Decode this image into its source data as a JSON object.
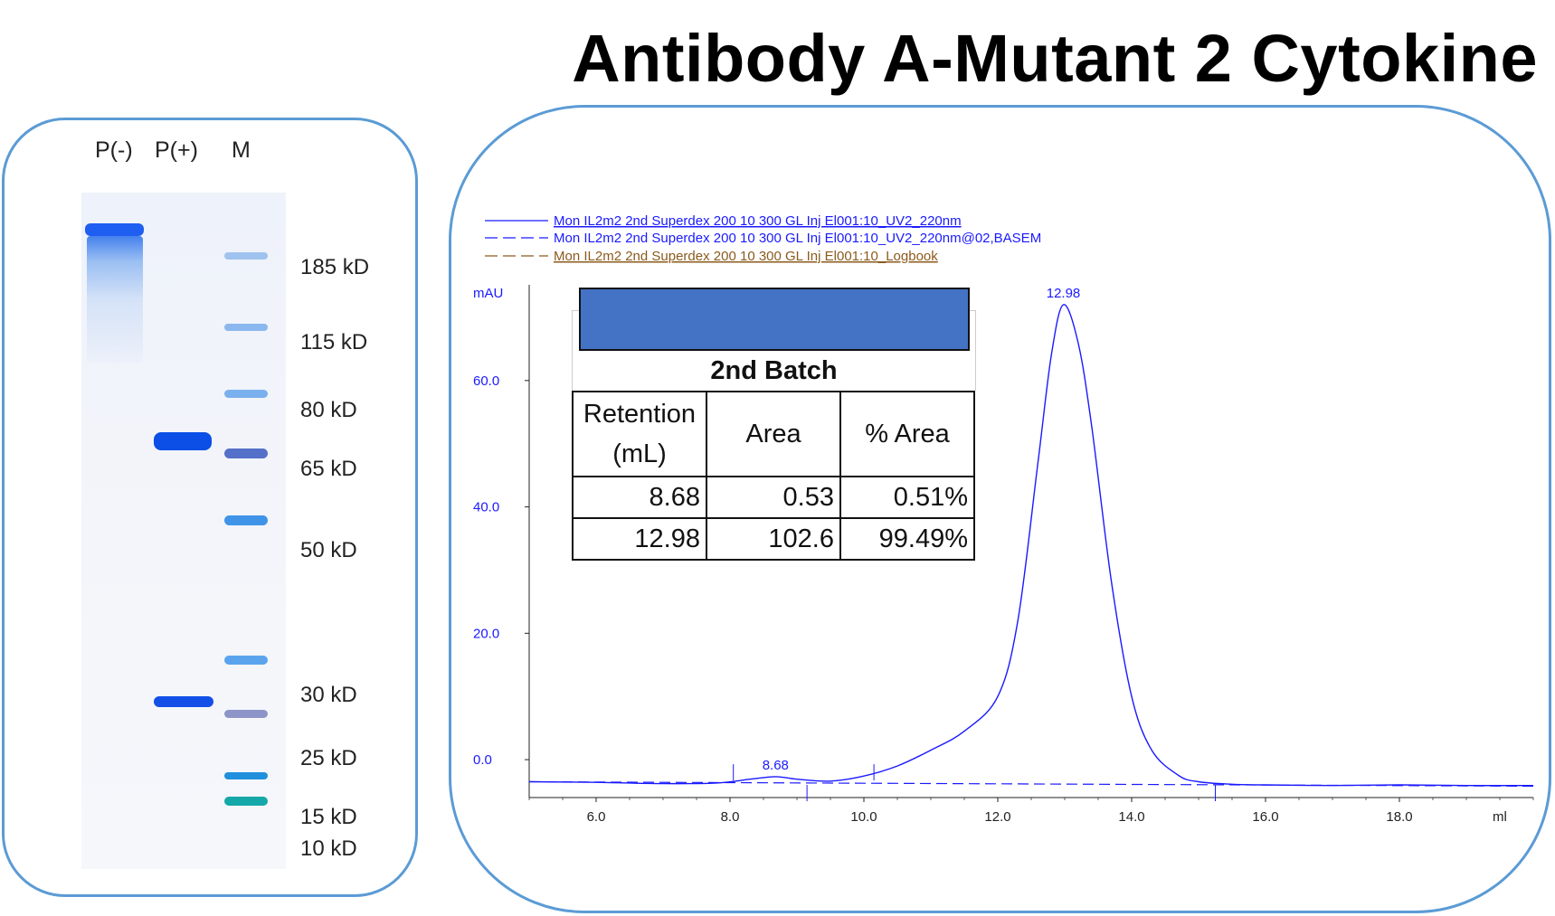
{
  "title": "Antibody A-Mutant 2 Cytokine",
  "gel": {
    "lanes": [
      "P(-)",
      "P(+)",
      "M"
    ],
    "markers": [
      "185 kD",
      "115 kD",
      "80 kD",
      "65 kD",
      "50 kD",
      "30 kD",
      "25 kD",
      "15 kD",
      "10 kD"
    ]
  },
  "table": {
    "batch_label": "2nd Batch",
    "headers": [
      "Retention (mL)",
      "Area",
      "% Area"
    ],
    "rows": [
      [
        "8.68",
        "0.53",
        "0.51%"
      ],
      [
        "12.98",
        "102.6",
        "99.49%"
      ]
    ]
  },
  "chart_data": {
    "type": "line",
    "title": "",
    "xlabel": "ml",
    "ylabel": "mAU",
    "xlim": [
      5.0,
      20.0
    ],
    "ylim": [
      -6,
      73
    ],
    "x_ticks": [
      "6.0",
      "8.0",
      "10.0",
      "12.0",
      "14.0",
      "16.0",
      "18.0"
    ],
    "y_ticks": [
      "0.0",
      "20.0",
      "40.0",
      "60.0"
    ],
    "legend": [
      "Mon IL2m2 2nd Superdex 200 10 300 GL Inj El001:10_UV2_220nm",
      "Mon IL2m2 2nd Superdex 200 10 300 GL Inj El001:10_UV2_220nm@02,BASEM",
      "Mon IL2m2 2nd Superdex 200 10 300 GL Inj El001:10_Logbook"
    ],
    "peak_labels": [
      {
        "x": 8.68,
        "label": "8.68"
      },
      {
        "x": 12.98,
        "label": "12.98"
      }
    ],
    "series": [
      {
        "name": "Mon IL2m2 2nd Superdex 200 10 300 GL Inj El001:10_UV2_220nm",
        "x": [
          5.0,
          6.0,
          7.0,
          7.8,
          8.3,
          8.68,
          9.0,
          9.5,
          10.0,
          10.5,
          11.0,
          11.5,
          12.0,
          12.3,
          12.6,
          12.8,
          12.98,
          13.2,
          13.4,
          13.7,
          14.0,
          14.3,
          14.7,
          15.0,
          15.5,
          16.0,
          17.0,
          18.0,
          19.0,
          20.0
        ],
        "y": [
          -3.5,
          -3.6,
          -3.8,
          -3.7,
          -3.1,
          -2.7,
          -3.1,
          -3.4,
          -2.6,
          -1.0,
          1.5,
          4.5,
          10.0,
          22.0,
          47.0,
          64.0,
          72.0,
          66.0,
          53.0,
          28.0,
          10.0,
          1.5,
          -2.5,
          -3.5,
          -3.9,
          -4.0,
          -4.1,
          -4.0,
          -4.1,
          -4.1
        ]
      },
      {
        "name": "Mon IL2m2 2nd Superdex 200 10 300 GL Inj El001:10_UV2_220nm@02,BASEM",
        "x": [
          5.0,
          20.0
        ],
        "y": [
          -3.5,
          -4.2
        ]
      }
    ],
    "colors": {
      "signal": "#1a1aff",
      "baseline": "#1a1aff",
      "logbook": "#8b5a1c",
      "axis": "#222222"
    }
  }
}
